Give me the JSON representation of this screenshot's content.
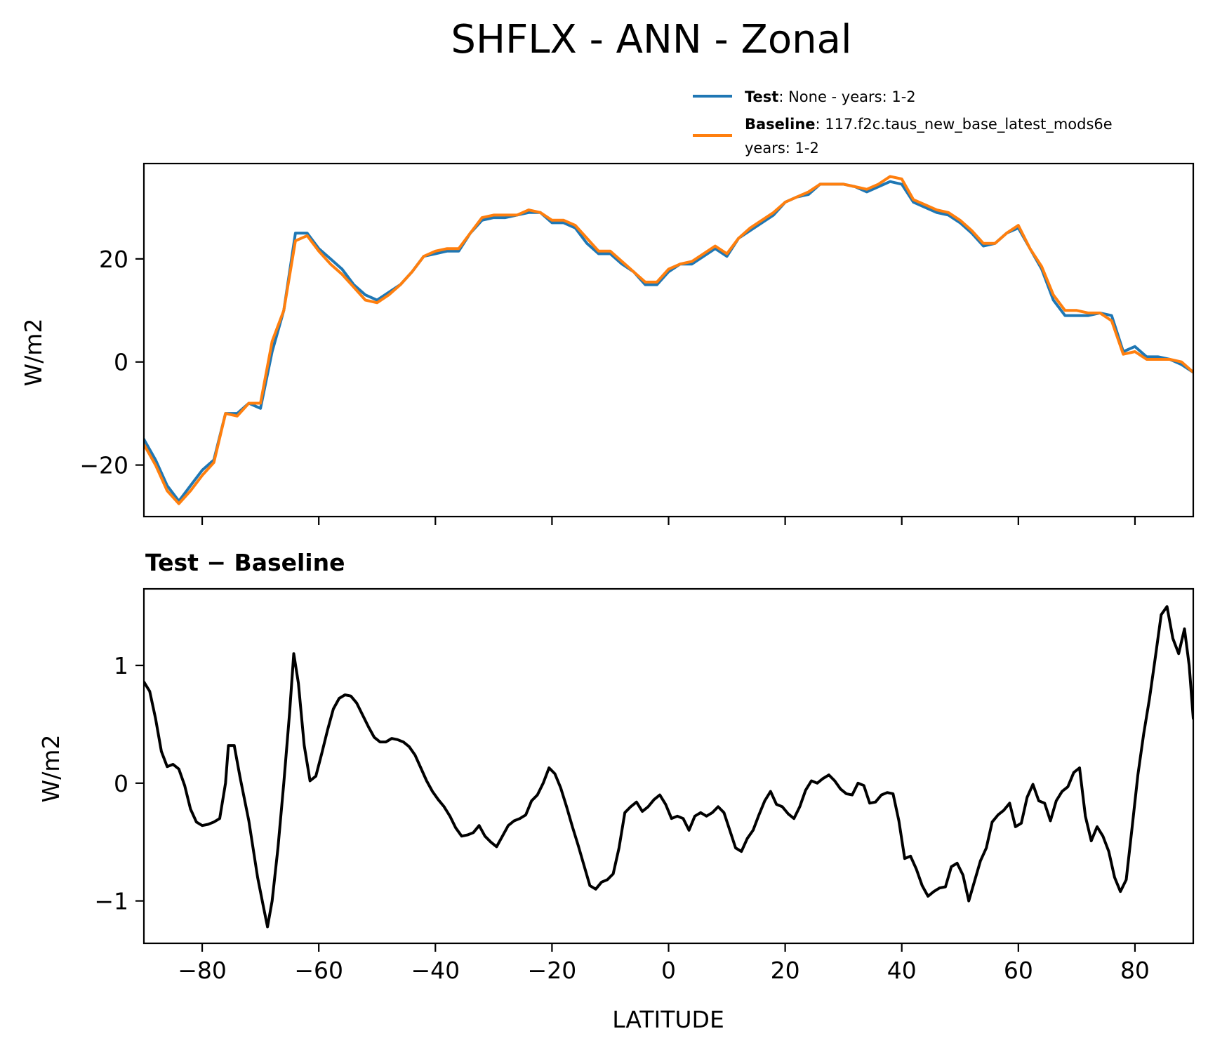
{
  "figure": {
    "title": "SHFLX - ANN - Zonal"
  },
  "legend": {
    "location": "above top panel, right",
    "entries": [
      {
        "bold": "Test",
        "text": ": None - years: 1-2",
        "text2": "",
        "color": "#1f77b4"
      },
      {
        "bold": "Baseline",
        "text": ": 117.f2c.taus_new_base_latest_mods6e",
        "text2": "years: 1-2",
        "color": "#ff7f0e"
      }
    ]
  },
  "chart_data": [
    {
      "type": "line",
      "panel": "top",
      "title": "",
      "xlabel": "",
      "ylabel": "W/m2",
      "xlim": [
        -90,
        90
      ],
      "ylim": [
        -30,
        38.5
      ],
      "xticks": [
        -80,
        -60,
        -40,
        -20,
        0,
        20,
        40,
        60,
        80
      ],
      "xtick_labels_shown": false,
      "yticks": [
        -20,
        0,
        20
      ],
      "ytick_labels": [
        "−20",
        "0",
        "20"
      ],
      "grid": false,
      "x": [
        -90,
        -88,
        -86,
        -84,
        -82,
        -80,
        -78,
        -76,
        -74,
        -72,
        -70,
        -68,
        -66,
        -64,
        -62,
        -60,
        -58,
        -56,
        -54,
        -52,
        -50,
        -48,
        -46,
        -44,
        -42,
        -40,
        -38,
        -36,
        -34,
        -32,
        -30,
        -28,
        -26,
        -24,
        -22,
        -20,
        -18,
        -16,
        -14,
        -12,
        -10,
        -8,
        -6,
        -4,
        -2,
        0,
        2,
        4,
        6,
        8,
        10,
        12,
        14,
        16,
        18,
        20,
        22,
        24,
        26,
        28,
        30,
        32,
        34,
        36,
        38,
        40,
        42,
        44,
        46,
        48,
        50,
        52,
        54,
        56,
        58,
        60,
        62,
        64,
        66,
        68,
        70,
        72,
        74,
        76,
        78,
        80,
        82,
        84,
        86,
        88,
        90
      ],
      "series": [
        {
          "name": "Test",
          "color": "#1f77b4",
          "values": [
            -15,
            -19,
            -24,
            -27,
            -24,
            -21,
            -19,
            -10,
            -10,
            -8,
            -9,
            2,
            10,
            25,
            25,
            22,
            20,
            18,
            15,
            13,
            12,
            13.5,
            15,
            17.5,
            20.5,
            21,
            21.5,
            21.5,
            25,
            27.5,
            28,
            28,
            28.5,
            29,
            29,
            27,
            27,
            26,
            23,
            21,
            21,
            19,
            17.5,
            15,
            15,
            17.5,
            19,
            19,
            20.5,
            22,
            20.5,
            24,
            25.5,
            27,
            28.5,
            31,
            32,
            32.5,
            34.5,
            34.5,
            34.5,
            34,
            33,
            34,
            35,
            34.5,
            31,
            30,
            29,
            28.5,
            27,
            25,
            22.5,
            23,
            25,
            26,
            22,
            18,
            12,
            9,
            9,
            9,
            9.5,
            9,
            2,
            3,
            1,
            1,
            0.5,
            -0.5,
            -2
          ]
        },
        {
          "name": "Baseline",
          "color": "#ff7f0e",
          "values": [
            -16,
            -20,
            -25,
            -27.5,
            -25,
            -22,
            -19.5,
            -10,
            -10.5,
            -8,
            -8,
            4,
            10,
            23.5,
            24.5,
            21.5,
            19,
            17,
            14.5,
            12,
            11.5,
            13,
            15,
            17.5,
            20.5,
            21.5,
            22,
            22,
            25,
            28,
            28.5,
            28.5,
            28.5,
            29.5,
            29,
            27.5,
            27.5,
            26.5,
            24,
            21.5,
            21.5,
            19.5,
            17.5,
            15.5,
            15.5,
            18,
            19,
            19.5,
            21,
            22.5,
            21,
            24,
            26,
            27.5,
            29,
            31,
            32,
            33,
            34.5,
            34.5,
            34.5,
            34,
            33.5,
            34.5,
            36,
            35.5,
            31.5,
            30.5,
            29.5,
            29,
            27.5,
            25.5,
            23,
            23,
            25,
            26.5,
            22,
            18.5,
            13,
            10,
            10,
            9.5,
            9.5,
            8,
            1.5,
            2,
            0.5,
            0.5,
            0.5,
            0,
            -2
          ]
        }
      ]
    },
    {
      "type": "line",
      "panel": "bottom",
      "title": "Test − Baseline",
      "xlabel": "LATITUDE",
      "ylabel": "W/m2",
      "xlim": [
        -90,
        90
      ],
      "ylim": [
        -1.36,
        1.65
      ],
      "xticks": [
        -80,
        -60,
        -40,
        -20,
        0,
        20,
        40,
        60,
        80
      ],
      "xtick_labels": [
        "−80",
        "−60",
        "−40",
        "−20",
        "0",
        "20",
        "40",
        "60",
        "80"
      ],
      "yticks": [
        -1,
        0,
        1
      ],
      "ytick_labels": [
        "−1",
        "0",
        "1"
      ],
      "grid": false,
      "series": [
        {
          "name": "",
          "color": "#000000",
          "points": [
            [
              -90,
              0.86
            ],
            [
              -89,
              0.78
            ],
            [
              -88,
              0.55
            ],
            [
              -87,
              0.27
            ],
            [
              -86,
              0.14
            ],
            [
              -85,
              0.16
            ],
            [
              -84,
              0.12
            ],
            [
              -83,
              -0.02
            ],
            [
              -82,
              -0.22
            ],
            [
              -81,
              -0.33
            ],
            [
              -80,
              -0.36
            ],
            [
              -79,
              -0.35
            ],
            [
              -78,
              -0.33
            ],
            [
              -77,
              -0.3
            ],
            [
              -76,
              0.0
            ],
            [
              -75.5,
              0.32
            ],
            [
              -74.5,
              0.32
            ],
            [
              -73.5,
              0.05
            ],
            [
              -72,
              -0.32
            ],
            [
              -70.5,
              -0.8
            ],
            [
              -69.5,
              -1.05
            ],
            [
              -68.8,
              -1.22
            ],
            [
              -68,
              -1.0
            ],
            [
              -67,
              -0.55
            ],
            [
              -66,
              0.0
            ],
            [
              -65,
              0.6
            ],
            [
              -64.3,
              1.1
            ],
            [
              -63.5,
              0.85
            ],
            [
              -62.5,
              0.32
            ],
            [
              -61.5,
              0.02
            ],
            [
              -60.5,
              0.06
            ],
            [
              -59.5,
              0.25
            ],
            [
              -58.5,
              0.45
            ],
            [
              -57.5,
              0.63
            ],
            [
              -56.5,
              0.72
            ],
            [
              -55.5,
              0.75
            ],
            [
              -54.5,
              0.74
            ],
            [
              -53.5,
              0.68
            ],
            [
              -52.5,
              0.58
            ],
            [
              -51.5,
              0.48
            ],
            [
              -50.5,
              0.39
            ],
            [
              -49.5,
              0.35
            ],
            [
              -48.5,
              0.35
            ],
            [
              -47.5,
              0.38
            ],
            [
              -46.5,
              0.37
            ],
            [
              -45.5,
              0.35
            ],
            [
              -44.5,
              0.31
            ],
            [
              -43.5,
              0.24
            ],
            [
              -42.5,
              0.13
            ],
            [
              -41.5,
              0.02
            ],
            [
              -40.5,
              -0.07
            ],
            [
              -39.5,
              -0.14
            ],
            [
              -38.5,
              -0.2
            ],
            [
              -37.5,
              -0.28
            ],
            [
              -36.5,
              -0.38
            ],
            [
              -35.5,
              -0.45
            ],
            [
              -34.5,
              -0.44
            ],
            [
              -33.5,
              -0.42
            ],
            [
              -32.5,
              -0.36
            ],
            [
              -31.5,
              -0.45
            ],
            [
              -30.5,
              -0.5
            ],
            [
              -29.5,
              -0.54
            ],
            [
              -28.5,
              -0.45
            ],
            [
              -27.5,
              -0.36
            ],
            [
              -26.5,
              -0.32
            ],
            [
              -25.5,
              -0.3
            ],
            [
              -24.5,
              -0.27
            ],
            [
              -23.5,
              -0.15
            ],
            [
              -22.5,
              -0.1
            ],
            [
              -21.5,
              0.0
            ],
            [
              -20.5,
              0.13
            ],
            [
              -19.5,
              0.08
            ],
            [
              -18.5,
              -0.04
            ],
            [
              -17.5,
              -0.2
            ],
            [
              -16.5,
              -0.37
            ],
            [
              -15.5,
              -0.53
            ],
            [
              -14.5,
              -0.7
            ],
            [
              -13.5,
              -0.87
            ],
            [
              -12.5,
              -0.9
            ],
            [
              -11.5,
              -0.84
            ],
            [
              -10.5,
              -0.82
            ],
            [
              -9.5,
              -0.77
            ],
            [
              -8.5,
              -0.55
            ],
            [
              -7.5,
              -0.25
            ],
            [
              -6.5,
              -0.2
            ],
            [
              -5.5,
              -0.16
            ],
            [
              -4.5,
              -0.24
            ],
            [
              -3.5,
              -0.2
            ],
            [
              -2.5,
              -0.14
            ],
            [
              -1.5,
              -0.1
            ],
            [
              -0.5,
              -0.18
            ],
            [
              0.5,
              -0.3
            ],
            [
              1.5,
              -0.28
            ],
            [
              2.5,
              -0.3
            ],
            [
              3.5,
              -0.4
            ],
            [
              4.5,
              -0.28
            ],
            [
              5.5,
              -0.25
            ],
            [
              6.5,
              -0.28
            ],
            [
              7.5,
              -0.25
            ],
            [
              8.5,
              -0.2
            ],
            [
              9.5,
              -0.25
            ],
            [
              10.5,
              -0.4
            ],
            [
              11.5,
              -0.55
            ],
            [
              12.5,
              -0.58
            ],
            [
              13.5,
              -0.47
            ],
            [
              14.5,
              -0.4
            ],
            [
              15.5,
              -0.27
            ],
            [
              16.5,
              -0.15
            ],
            [
              17.5,
              -0.07
            ],
            [
              18.5,
              -0.18
            ],
            [
              19.5,
              -0.2
            ],
            [
              20.5,
              -0.26
            ],
            [
              21.5,
              -0.3
            ],
            [
              22.5,
              -0.2
            ],
            [
              23.5,
              -0.06
            ],
            [
              24.5,
              0.02
            ],
            [
              25.5,
              0.0
            ],
            [
              26.5,
              0.04
            ],
            [
              27.5,
              0.07
            ],
            [
              28.5,
              0.02
            ],
            [
              29.5,
              -0.05
            ],
            [
              30.5,
              -0.09
            ],
            [
              31.5,
              -0.1
            ],
            [
              32.5,
              0.0
            ],
            [
              33.5,
              -0.02
            ],
            [
              34.5,
              -0.17
            ],
            [
              35.5,
              -0.16
            ],
            [
              36.5,
              -0.1
            ],
            [
              37.5,
              -0.08
            ],
            [
              38.5,
              -0.09
            ],
            [
              39.5,
              -0.32
            ],
            [
              40.5,
              -0.64
            ],
            [
              41.5,
              -0.62
            ],
            [
              42.5,
              -0.73
            ],
            [
              43.5,
              -0.87
            ],
            [
              44.5,
              -0.96
            ],
            [
              45.5,
              -0.92
            ],
            [
              46.5,
              -0.89
            ],
            [
              47.5,
              -0.88
            ],
            [
              48.5,
              -0.71
            ],
            [
              49.5,
              -0.68
            ],
            [
              50.5,
              -0.78
            ],
            [
              51.5,
              -1.0
            ],
            [
              52.5,
              -0.83
            ],
            [
              53.5,
              -0.66
            ],
            [
              54.5,
              -0.55
            ],
            [
              55.5,
              -0.33
            ],
            [
              56.5,
              -0.27
            ],
            [
              57.5,
              -0.23
            ],
            [
              58.5,
              -0.17
            ],
            [
              59.5,
              -0.37
            ],
            [
              60.5,
              -0.34
            ],
            [
              61.5,
              -0.12
            ],
            [
              62.5,
              -0.01
            ],
            [
              63.5,
              -0.15
            ],
            [
              64.5,
              -0.17
            ],
            [
              65.5,
              -0.32
            ],
            [
              66.5,
              -0.15
            ],
            [
              67.5,
              -0.07
            ],
            [
              68.5,
              -0.03
            ],
            [
              69.5,
              0.09
            ],
            [
              70.5,
              0.13
            ],
            [
              71.5,
              -0.28
            ],
            [
              72.5,
              -0.49
            ],
            [
              73.5,
              -0.37
            ],
            [
              74.5,
              -0.45
            ],
            [
              75.5,
              -0.58
            ],
            [
              76.5,
              -0.8
            ],
            [
              77.5,
              -0.92
            ],
            [
              78.5,
              -0.82
            ],
            [
              79.5,
              -0.38
            ],
            [
              80.5,
              0.07
            ],
            [
              81.5,
              0.42
            ],
            [
              82.5,
              0.72
            ],
            [
              83.5,
              1.07
            ],
            [
              84.5,
              1.43
            ],
            [
              85.5,
              1.5
            ],
            [
              86.5,
              1.23
            ],
            [
              87.5,
              1.1
            ],
            [
              88.5,
              1.31
            ],
            [
              89.3,
              1.0
            ],
            [
              90,
              0.55
            ]
          ]
        }
      ]
    }
  ]
}
